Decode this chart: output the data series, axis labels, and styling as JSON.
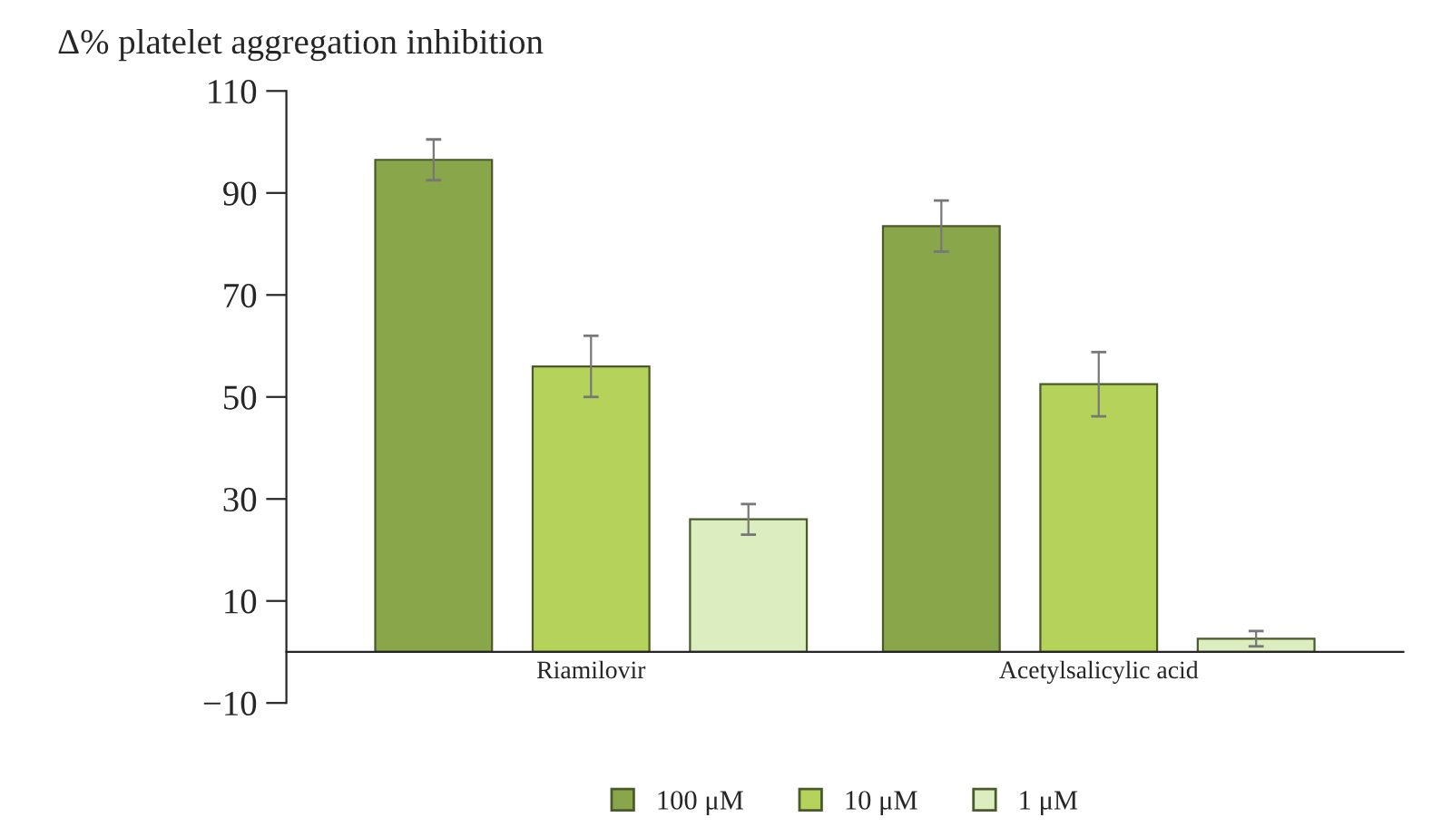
{
  "chart_data": {
    "type": "bar",
    "ylabel": "Δ% platelet aggregation inhibition",
    "categories": [
      "Riamilovir",
      "Acetylsalicylic acid"
    ],
    "series": [
      {
        "name": "100 μM",
        "color": "#8aa64a",
        "values": [
          96.5,
          83.5
        ],
        "errors": [
          4,
          5
        ]
      },
      {
        "name": "10 μM",
        "color": "#b5d35a",
        "values": [
          56,
          52.5
        ],
        "errors": [
          6,
          6.3
        ]
      },
      {
        "name": "1 μM",
        "color": "#dcedc0",
        "values": [
          26,
          2.6
        ],
        "errors": [
          3,
          1.5
        ]
      }
    ],
    "ylim": [
      -10,
      110
    ],
    "yticks": [
      {
        "value": -10,
        "label": "−10"
      },
      10,
      30,
      50,
      70,
      90,
      110
    ],
    "grid": false,
    "legend": "bottom"
  }
}
